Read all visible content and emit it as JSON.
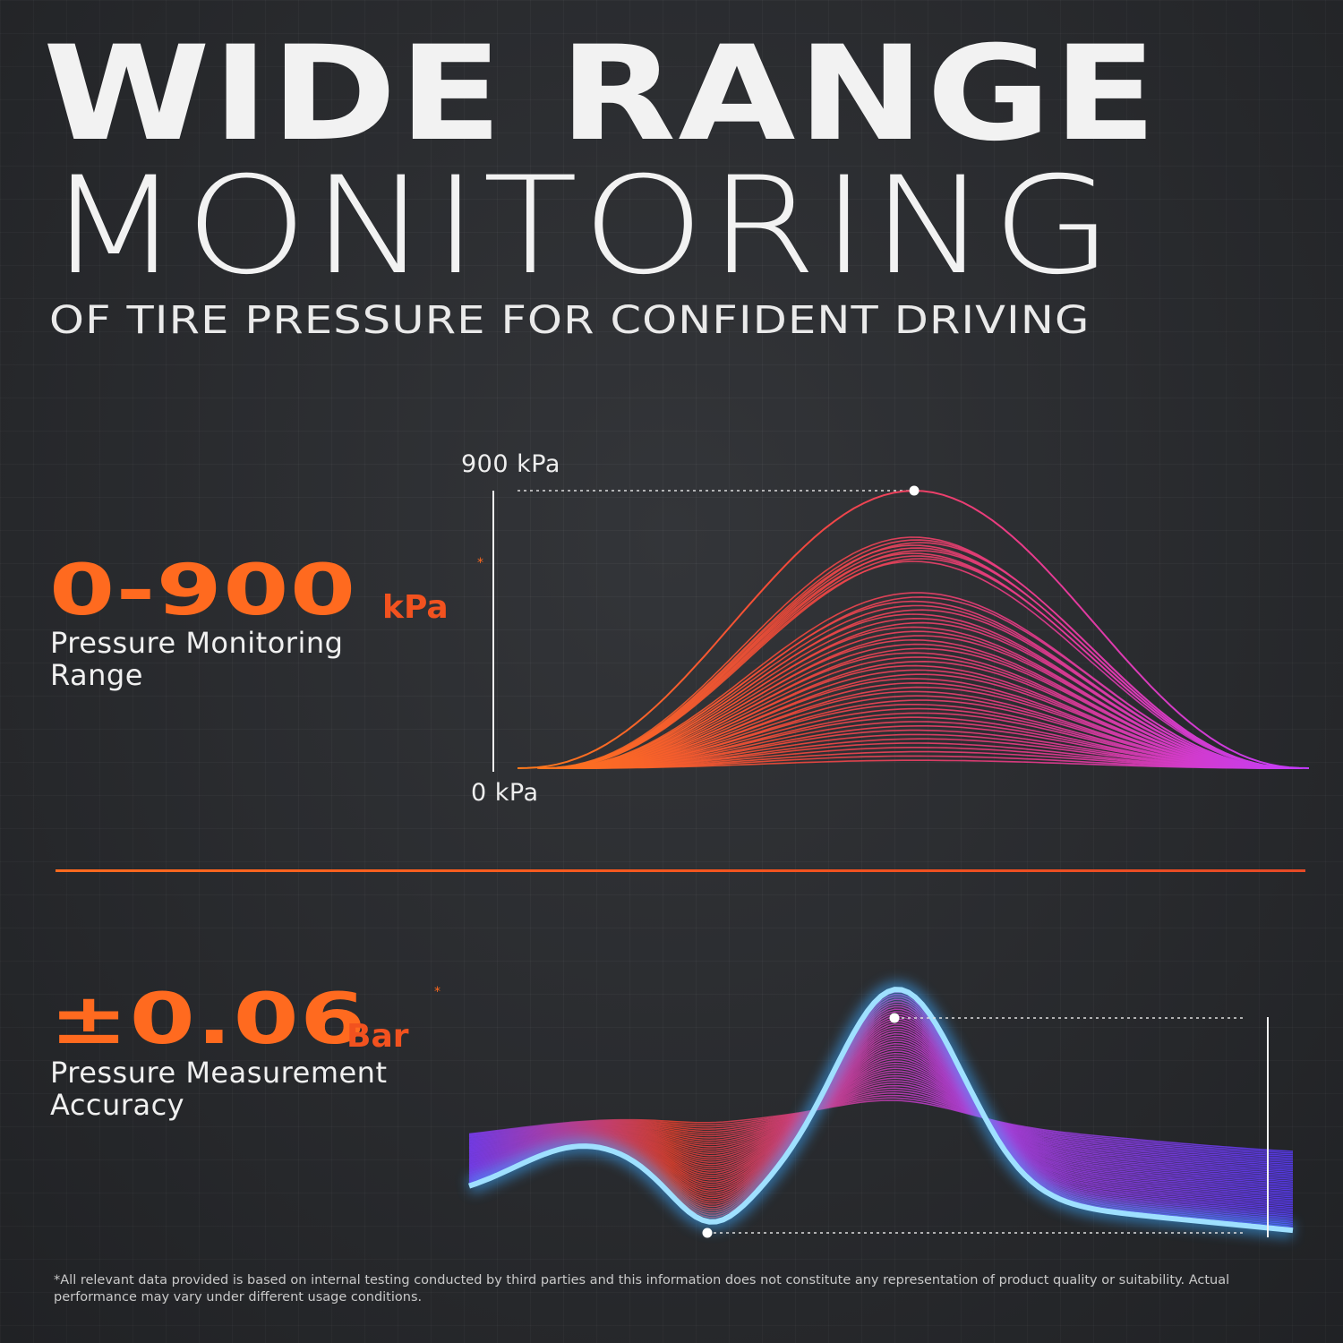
{
  "headline": {
    "line1": "WIDE RANGE",
    "line2": "MONITORING",
    "subtitle": "OF TIRE PRESSURE FOR CONFIDENT DRIVING"
  },
  "stat_range": {
    "value": "0-900",
    "unit": "kPa",
    "asterisk": "*",
    "label_line1": "Pressure Monitoring",
    "label_line2": "Range"
  },
  "range_chart": {
    "top_label": "900 kPa",
    "bottom_label": "0 kPa"
  },
  "stat_accuracy": {
    "value": "±0.06",
    "unit": "Bar",
    "asterisk": "*",
    "label_line1": "Pressure Measurement",
    "label_line2": "Accuracy"
  },
  "footnote": "*All relevant data provided is based on internal testing conducted by third parties and this information does not constitute any representation of product quality or suitability. Actual performance may vary under different usage conditions.",
  "colors": {
    "accent_orange": "#ff6a1f",
    "accent_magenta": "#d63cff",
    "accent_blue": "#7fd4ff",
    "background": "#2b2d31"
  }
}
